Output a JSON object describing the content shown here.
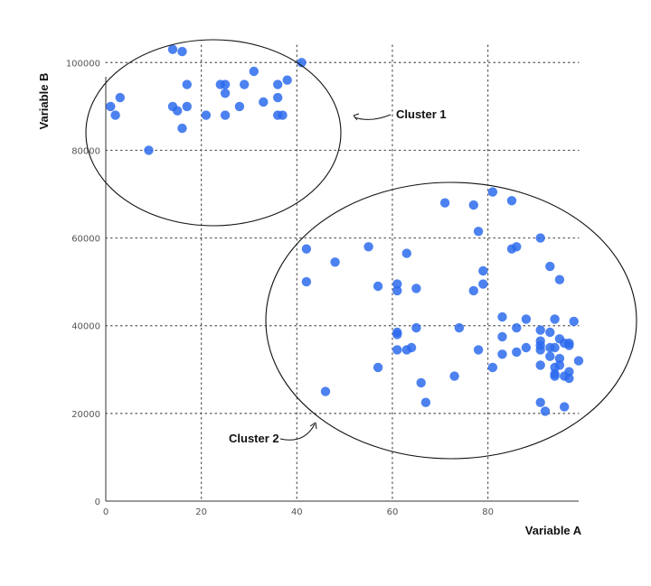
{
  "chart_data": {
    "type": "scatter",
    "title": "",
    "xlabel": "Variable A",
    "ylabel": "Variable B",
    "xlim": [
      0,
      99
    ],
    "ylim": [
      0,
      105000
    ],
    "xticks": [
      0,
      20,
      40,
      60,
      80
    ],
    "yticks": [
      0,
      20000,
      40000,
      60000,
      80000,
      100000
    ],
    "xtick_labels": [
      "0",
      "20",
      "40",
      "60",
      "80"
    ],
    "ytick_labels": [
      "0",
      "20000",
      "40000",
      "60000",
      "80000",
      "100000"
    ],
    "grid": true,
    "point_color": "#2d6bed",
    "series": [
      {
        "name": "points",
        "points": [
          [
            14,
            103000
          ],
          [
            16,
            102500
          ],
          [
            41,
            100000
          ],
          [
            31,
            98000
          ],
          [
            38,
            96000
          ],
          [
            17,
            95000
          ],
          [
            24,
            95000
          ],
          [
            25,
            95000
          ],
          [
            29,
            95000
          ],
          [
            36,
            95000
          ],
          [
            25,
            93000
          ],
          [
            36,
            92000
          ],
          [
            3,
            92000
          ],
          [
            33,
            91000
          ],
          [
            1,
            90000
          ],
          [
            14,
            90000
          ],
          [
            17,
            90000
          ],
          [
            28,
            90000
          ],
          [
            15,
            89000
          ],
          [
            2,
            88000
          ],
          [
            21,
            88000
          ],
          [
            25,
            88000
          ],
          [
            36,
            88000
          ],
          [
            37,
            88000
          ],
          [
            16,
            85000
          ],
          [
            9,
            80000
          ],
          [
            81,
            70500
          ],
          [
            85,
            68500
          ],
          [
            71,
            68000
          ],
          [
            77,
            67500
          ],
          [
            78,
            61500
          ],
          [
            91,
            60000
          ],
          [
            55,
            58000
          ],
          [
            86,
            58000
          ],
          [
            85,
            57500
          ],
          [
            42,
            57500
          ],
          [
            63,
            56500
          ],
          [
            48,
            54500
          ],
          [
            93,
            53500
          ],
          [
            79,
            52500
          ],
          [
            95,
            50500
          ],
          [
            42,
            50000
          ],
          [
            79,
            49500
          ],
          [
            61,
            49500
          ],
          [
            57,
            49000
          ],
          [
            65,
            48500
          ],
          [
            61,
            48000
          ],
          [
            77,
            48000
          ],
          [
            83,
            42000
          ],
          [
            88,
            41500
          ],
          [
            94,
            41500
          ],
          [
            98,
            41000
          ],
          [
            86,
            39500
          ],
          [
            65,
            39500
          ],
          [
            74,
            39500
          ],
          [
            91,
            39000
          ],
          [
            93,
            38500
          ],
          [
            61,
            38500
          ],
          [
            61,
            38000
          ],
          [
            83,
            37500
          ],
          [
            95,
            37000
          ],
          [
            91,
            36500
          ],
          [
            96,
            36000
          ],
          [
            97,
            36000
          ],
          [
            91,
            35500
          ],
          [
            97,
            35500
          ],
          [
            88,
            35000
          ],
          [
            93,
            35000
          ],
          [
            94,
            35000
          ],
          [
            64,
            35000
          ],
          [
            91,
            34500
          ],
          [
            61,
            34500
          ],
          [
            78,
            34500
          ],
          [
            63,
            34500
          ],
          [
            86,
            34000
          ],
          [
            83,
            33500
          ],
          [
            93,
            33000
          ],
          [
            95,
            32500
          ],
          [
            99,
            32000
          ],
          [
            91,
            31000
          ],
          [
            95,
            31000
          ],
          [
            57,
            30500
          ],
          [
            81,
            30500
          ],
          [
            94,
            30500
          ],
          [
            97,
            29500
          ],
          [
            94,
            29000
          ],
          [
            94,
            28500
          ],
          [
            96,
            28500
          ],
          [
            73,
            28500
          ],
          [
            97,
            28000
          ],
          [
            66,
            27000
          ],
          [
            46,
            25000
          ],
          [
            67,
            22500
          ],
          [
            91,
            22500
          ],
          [
            96,
            21500
          ],
          [
            92,
            20500
          ]
        ]
      }
    ],
    "annotations": [
      {
        "label": "Cluster 1"
      },
      {
        "label": "Cluster 2"
      }
    ]
  }
}
